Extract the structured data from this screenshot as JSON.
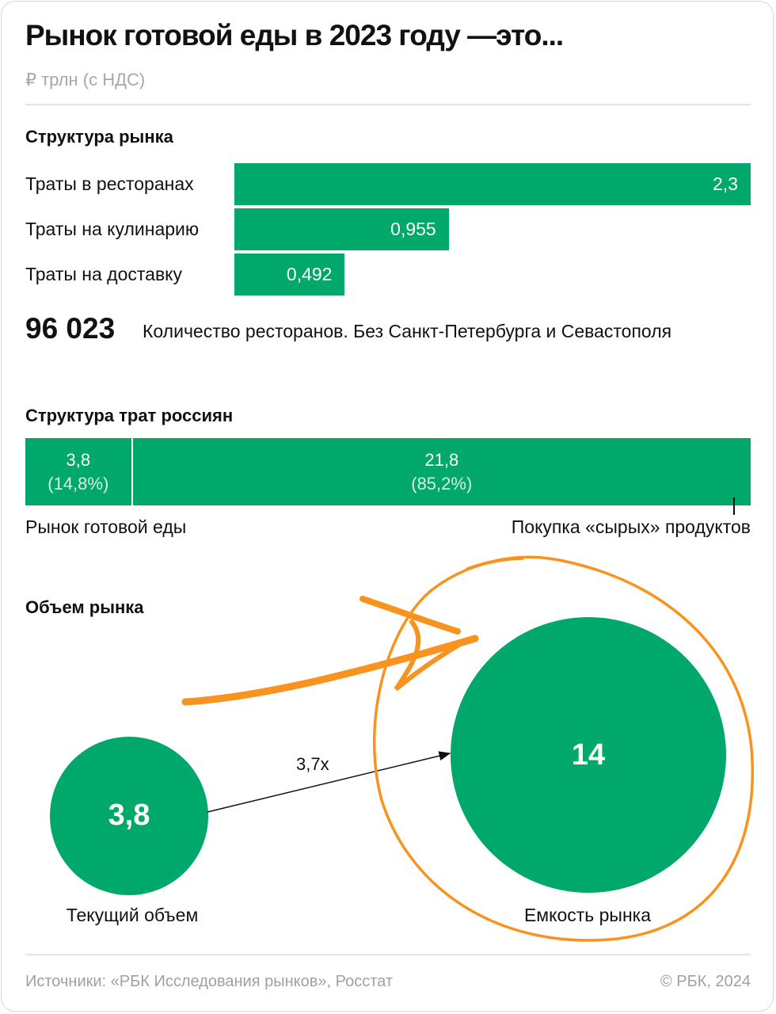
{
  "header": {
    "title": "Рынок готовой еды в 2023 году —это...",
    "subtitle": "₽ трлн (с НДС)"
  },
  "colors": {
    "accent": "#00a86b",
    "annotation": "#f7931e"
  },
  "chart_data": [
    {
      "type": "bar",
      "title": "Структура рынка",
      "categories": [
        "Траты в ресторанах",
        "Траты на кулинарию",
        "Траты на доставку"
      ],
      "values": [
        2.3,
        0.955,
        0.492
      ],
      "value_labels": [
        "2,3",
        "0,955",
        "0,492"
      ],
      "orientation": "horizontal"
    },
    {
      "type": "bar",
      "title": "Структура трат россиян",
      "stacked": true,
      "categories": [
        "Рынок готовой еды",
        "Покупка «сырых» продуктов"
      ],
      "values": [
        3.8,
        21.8
      ],
      "value_labels": [
        "3,8",
        "21,8"
      ],
      "percent_labels": [
        "(14,8%)",
        "(85,2%)"
      ],
      "percents": [
        14.8,
        85.2
      ]
    },
    {
      "type": "bubble",
      "title": "Объем рынка",
      "categories": [
        "Текущий объем",
        "Емкость рынка"
      ],
      "values": [
        3.8,
        14
      ],
      "value_labels": [
        "3,8",
        "14"
      ],
      "ratio_label": "3,7x"
    }
  ],
  "stat": {
    "value": "96 023",
    "note": "Количество ресторанов. Без Санкт-Петербурга и Севастополя"
  },
  "footer": {
    "sources": "Источники: «РБК Исследования рынков», Росстат",
    "copyright": "© РБК, 2024"
  }
}
